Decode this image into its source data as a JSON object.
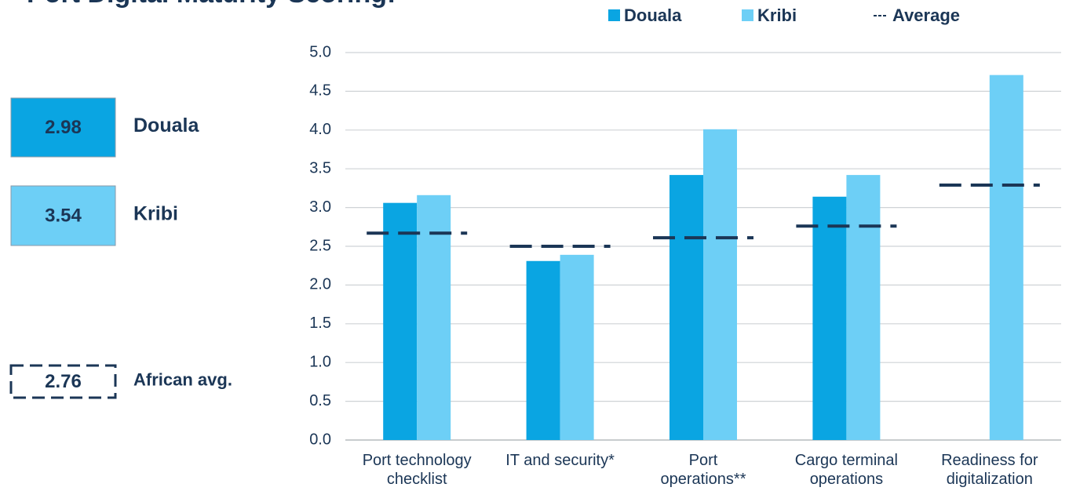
{
  "chart_data": {
    "type": "bar",
    "title": "Port Digital Maturity Scoring:",
    "categories": [
      "Port technology\nchecklist",
      "IT and security*",
      "Port\noperations**",
      "Cargo terminal\noperations",
      "Readiness for\ndigitalization"
    ],
    "series": [
      {
        "name": "Douala",
        "color": "#0aa5e2",
        "values": [
          3.06,
          2.31,
          3.42,
          3.14,
          null
        ]
      },
      {
        "name": "Kribi",
        "color": "#6dcff6",
        "values": [
          3.16,
          2.39,
          4.01,
          3.42,
          4.71
        ]
      },
      {
        "name": "Average",
        "color": "#1b3656",
        "style": "dashed",
        "values": [
          2.67,
          2.5,
          2.61,
          2.76,
          3.29
        ]
      }
    ],
    "ylim": [
      0,
      5
    ],
    "yticks": [
      {
        "value": 0,
        "label": "0.0"
      },
      {
        "value": 0.5,
        "label": "0.5"
      },
      {
        "value": 1,
        "label": "1.0"
      },
      {
        "value": 1.5,
        "label": "1.5"
      },
      {
        "value": 2,
        "label": "2.0"
      },
      {
        "value": 2.5,
        "label": "2.5"
      },
      {
        "value": 3,
        "label": "3.0"
      },
      {
        "value": 3.5,
        "label": "3.5"
      },
      {
        "value": 4,
        "label": "4.0"
      },
      {
        "value": 4.5,
        "label": "4.5"
      },
      {
        "value": 5,
        "label": "5.0"
      }
    ],
    "grid": true,
    "legend": "top",
    "scores": [
      {
        "value": 2.98,
        "label": "Douala",
        "color": "#0aa5e2"
      },
      {
        "value": 3.54,
        "label": "Kribi",
        "color": "#6dcff6"
      },
      {
        "value": 2.76,
        "label": "African avg.",
        "style": "dashed"
      }
    ]
  }
}
